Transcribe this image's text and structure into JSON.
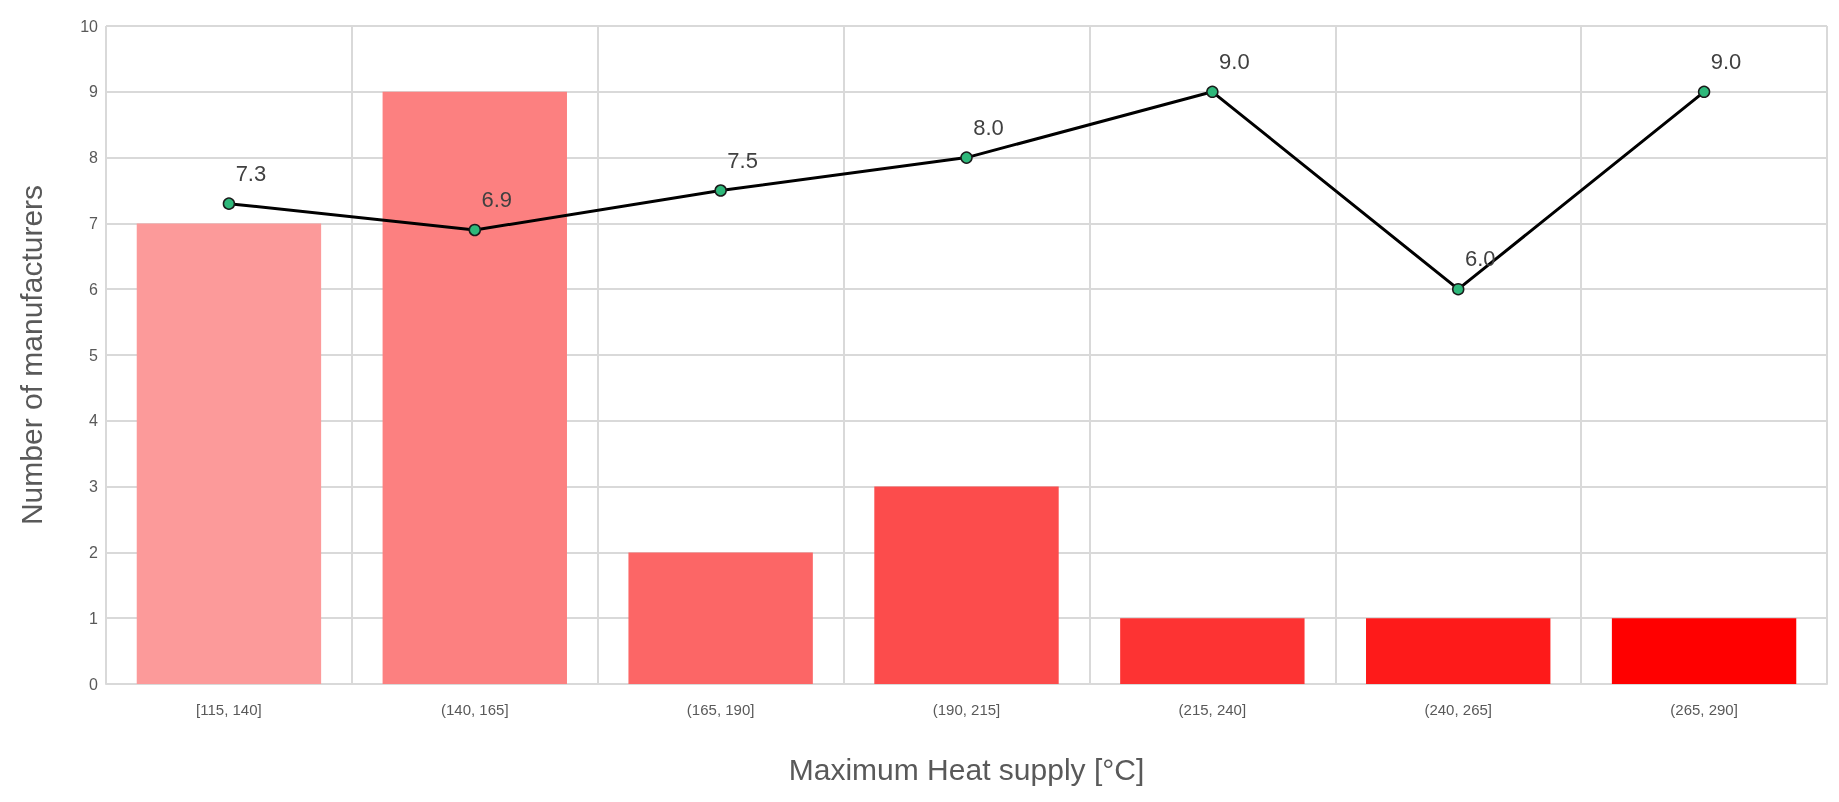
{
  "chart_data": {
    "type": "bar",
    "xlabel": "Maximum Heat supply [°C]",
    "ylabel": "Number of manufacturers",
    "categories": [
      "[115, 140]",
      "(140, 165]",
      "(165, 190]",
      "(190, 215]",
      "(215, 240]",
      "(240, 265]",
      "(265, 290]"
    ],
    "series": [
      {
        "values": [
          7,
          9,
          2,
          3,
          1,
          1,
          1
        ],
        "colors": [
          "#fc9a9a",
          "#fc8080",
          "#fc6666",
          "#fc4c4c",
          "#fd3333",
          "#fe1a1a",
          "#ff0000"
        ]
      },
      {
        "type": "line",
        "color": "#000000",
        "marker": "circle",
        "values": [
          7.3,
          6.9,
          7.5,
          8.0,
          9.0,
          6.0,
          9.0
        ],
        "value_labels": [
          "7.3",
          "6.9",
          "7.5",
          "8.0",
          "9.0",
          "6.0",
          "9.0"
        ]
      }
    ],
    "ylim": [
      0,
      10
    ],
    "yticks": [
      0,
      1,
      2,
      3,
      4,
      5,
      6,
      7,
      8,
      9,
      10
    ],
    "grid": true
  }
}
